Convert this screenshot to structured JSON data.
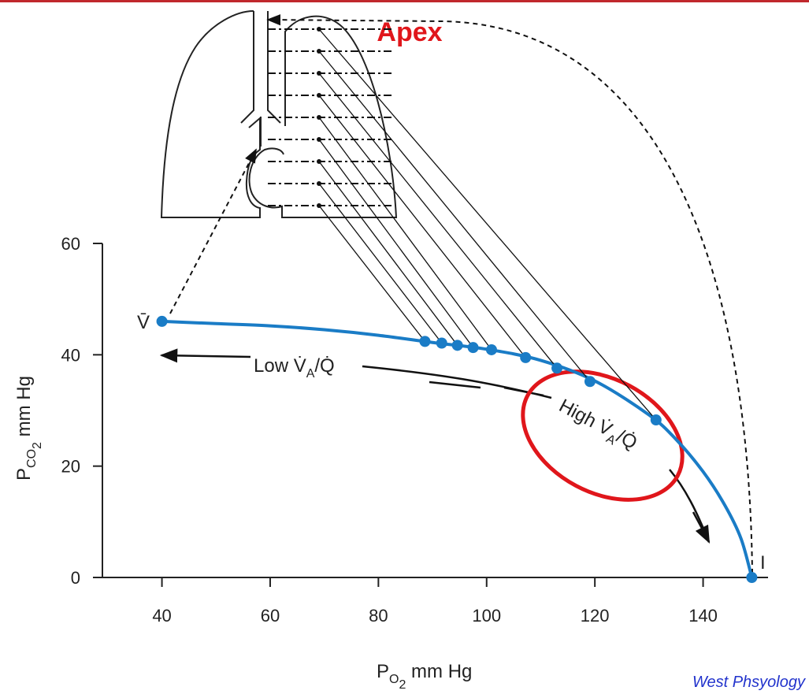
{
  "chart_data": {
    "type": "line",
    "title": "Apex",
    "x_label": [
      {
        "text": "P",
        "level": 0
      },
      {
        "text": "O",
        "level": 1
      },
      {
        "text": "2",
        "level": 2
      },
      {
        "text": " mm Hg",
        "level": 0
      }
    ],
    "y_label": [
      {
        "text": "P",
        "level": 0
      },
      {
        "text": "CO",
        "level": 1
      },
      {
        "text": "2",
        "level": 2
      },
      {
        "text": " mm Hg",
        "level": 0
      }
    ],
    "xlim": [
      29,
      152
    ],
    "ylim": [
      0,
      60
    ],
    "xticks": [
      40,
      60,
      80,
      100,
      120,
      140
    ],
    "yticks": [
      0,
      20,
      40,
      60
    ],
    "series": [
      {
        "color": "#1a7cc6",
        "marker": false,
        "x": [
          40,
          50,
          60,
          70,
          80,
          90,
          100,
          110,
          120,
          130,
          135,
          140,
          144,
          147,
          149
        ],
        "values": [
          46,
          45.6,
          45.2,
          44.5,
          43.5,
          42.2,
          41,
          39,
          35.3,
          29.2,
          24.8,
          19,
          13,
          7,
          0
        ]
      },
      {
        "color": "#1a7cc6",
        "marker": true,
        "x": [
          40,
          88.6,
          91.7,
          94.6,
          97.5,
          100.9,
          107.2,
          113,
          119.1,
          131.3,
          149
        ],
        "values": [
          46,
          42.4,
          42.1,
          41.7,
          41.3,
          40.9,
          39.5,
          37.6,
          35.2,
          28.3,
          0
        ]
      }
    ],
    "annotations": [
      {
        "parts": [
          {
            "text": "V̄",
            "level": 0
          }
        ]
      },
      {
        "parts": [
          {
            "text": "I",
            "level": 0
          }
        ]
      },
      {
        "parts": [
          {
            "text": "Low V̇",
            "level": 0
          },
          {
            "text": "A",
            "level": 1
          },
          {
            "text": "/Q̇",
            "level": 0
          }
        ]
      },
      {
        "parts": [
          {
            "text": "High V̇",
            "level": 0
          },
          {
            "text": "A",
            "level": 1
          },
          {
            "text": "/Q̇",
            "level": 0
          }
        ]
      }
    ],
    "source": "West Phsyology"
  }
}
